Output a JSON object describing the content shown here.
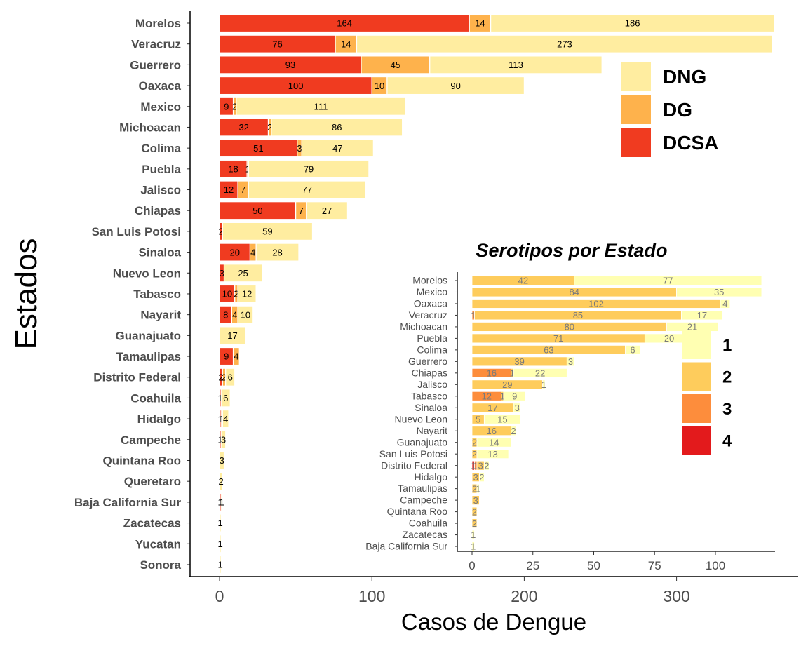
{
  "chart_data": [
    {
      "type": "bar",
      "orientation": "horizontal",
      "stacked": true,
      "xlabel": "Casos de Dengue",
      "ylabel": "Estados",
      "xlim": [
        0,
        360
      ],
      "xticks": [
        0,
        100,
        200,
        300
      ],
      "legend": {
        "placement": "top-right",
        "order": [
          "DNG",
          "DG",
          "DCSA"
        ]
      },
      "colors": {
        "DCSA": "#f03b20",
        "DG": "#feb24c",
        "DNG": "#ffeda0"
      },
      "categories": [
        "Morelos",
        "Veracruz",
        "Guerrero",
        "Oaxaca",
        "Mexico",
        "Michoacan",
        "Colima",
        "Puebla",
        "Jalisco",
        "Chiapas",
        "San  Luis Potosi",
        "Sinaloa",
        "Nuevo Leon",
        "Tabasco",
        "Nayarit",
        "Guanajuato",
        "Tamaulipas",
        "Distrito Federal",
        "Coahuila",
        "Hidalgo",
        "Campeche",
        "Quintana Roo",
        "Queretaro",
        "Baja California Sur",
        "Zacatecas",
        "Yucatan",
        "Sonora"
      ],
      "series": [
        {
          "name": "DCSA",
          "values": [
            164,
            76,
            93,
            100,
            9,
            32,
            51,
            18,
            12,
            50,
            2,
            20,
            3,
            10,
            8,
            0,
            9,
            2,
            1,
            1,
            1,
            0,
            0,
            1,
            0,
            0,
            0
          ]
        },
        {
          "name": "DG",
          "values": [
            14,
            14,
            45,
            10,
            2,
            2,
            3,
            1,
            7,
            7,
            0,
            4,
            0,
            2,
            4,
            0,
            4,
            2,
            0,
            1,
            0,
            0,
            0,
            0,
            0,
            0,
            0
          ]
        },
        {
          "name": "DNG",
          "values": [
            186,
            273,
            113,
            90,
            111,
            86,
            47,
            79,
            77,
            27,
            59,
            28,
            25,
            12,
            10,
            17,
            0,
            6,
            6,
            4,
            3,
            3,
            2,
            1,
            1,
            1,
            1
          ]
        }
      ]
    },
    {
      "type": "bar",
      "orientation": "horizontal",
      "stacked": true,
      "title": "Serotipos por Estado",
      "xlim": [
        0,
        119
      ],
      "xticks": [
        0,
        25,
        50,
        75,
        100
      ],
      "legend": {
        "placement": "right",
        "order": [
          "1",
          "2",
          "3",
          "4"
        ]
      },
      "colors": {
        "1": "#ffffb2",
        "2": "#fecc5c",
        "3": "#fd8d3c",
        "4": "#e31a1c"
      },
      "categories": [
        "Morelos",
        "Mexico",
        "Oaxaca",
        "Veracruz",
        "Michoacan",
        "Puebla",
        "Colima",
        "Guerrero",
        "Chiapas",
        "Jalisco",
        "Tabasco",
        "Sinaloa",
        "Nuevo Leon",
        "Nayarit",
        "Guanajuato",
        "San  Luis Potosi",
        "Distrito Federal",
        "Hidalgo",
        "Tamaulipas",
        "Campeche",
        "Quintana Roo",
        "Coahuila",
        "Zacatecas",
        "Baja California Sur"
      ],
      "series": [
        {
          "name": "4",
          "values": [
            0,
            0,
            0,
            0,
            0,
            0,
            0,
            0,
            0,
            0,
            0,
            0,
            0,
            0,
            0,
            0,
            1,
            0,
            0,
            0,
            0,
            0,
            0,
            0
          ]
        },
        {
          "name": "3",
          "values": [
            0,
            0,
            0,
            1,
            0,
            0,
            0,
            0,
            16,
            0,
            12,
            0,
            0,
            0,
            0,
            0,
            1,
            0,
            0,
            0,
            0,
            0,
            0,
            0
          ]
        },
        {
          "name": "2",
          "values": [
            42,
            84,
            102,
            85,
            80,
            71,
            63,
            39,
            1,
            29,
            1,
            17,
            5,
            16,
            2,
            2,
            3,
            3,
            2,
            3,
            2,
            2,
            0,
            0
          ]
        },
        {
          "name": "1",
          "values": [
            77,
            35,
            4,
            17,
            21,
            20,
            6,
            3,
            22,
            1,
            9,
            3,
            15,
            2,
            14,
            13,
            2,
            2,
            1,
            0,
            0,
            0,
            1,
            1
          ]
        }
      ]
    }
  ]
}
